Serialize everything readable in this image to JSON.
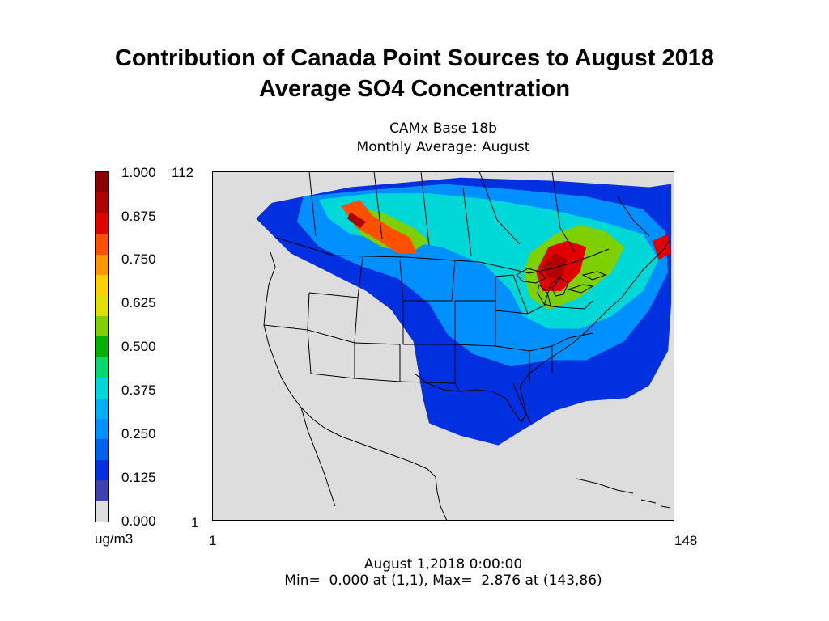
{
  "slide": {
    "title_line1": "Contribution of Canada Point Sources to August 2018",
    "title_line2": "Average SO4 Concentration"
  },
  "chart_data": {
    "type": "heatmap",
    "title_line1": "CAMx Base 18b",
    "title_line2": "Monthly Average: August",
    "colorbar": {
      "ticks": [
        "1.000",
        "0.875",
        "0.750",
        "0.625",
        "0.500",
        "0.375",
        "0.250",
        "0.125",
        "0.000"
      ],
      "unit": "ug/m3",
      "colors_top_to_bottom": [
        "#8b0000",
        "#b00000",
        "#e00000",
        "#ff5000",
        "#ff9800",
        "#ffd000",
        "#e0e000",
        "#7fd000",
        "#00b000",
        "#00d870",
        "#00d8d8",
        "#00b0f0",
        "#0090ff",
        "#0060f0",
        "#0030e0",
        "#4040b0",
        "#dddddd"
      ]
    },
    "x_axis": {
      "min_label": "1",
      "max_label": "148"
    },
    "y_axis": {
      "min_label": "1",
      "max_label": "112"
    },
    "x_range": [
      1,
      148
    ],
    "y_range": [
      1,
      112
    ],
    "field_regions": [
      {
        "level": 0.1,
        "polygon": [
          [
            20,
            102
          ],
          [
            45,
            107
          ],
          [
            80,
            110
          ],
          [
            110,
            109
          ],
          [
            140,
            107
          ],
          [
            147,
            108
          ],
          [
            147,
            70
          ],
          [
            146,
            55
          ],
          [
            140,
            44
          ],
          [
            133,
            40
          ],
          [
            120,
            39
          ],
          [
            110,
            36
          ],
          [
            100,
            30
          ],
          [
            92,
            25
          ],
          [
            80,
            28
          ],
          [
            70,
            32
          ],
          [
            68,
            40
          ],
          [
            65,
            58
          ],
          [
            58,
            68
          ],
          [
            50,
            74
          ],
          [
            38,
            80
          ],
          [
            26,
            86
          ],
          [
            15,
            97
          ]
        ]
      },
      {
        "level": 0.25,
        "polygon": [
          [
            30,
            104
          ],
          [
            50,
            106
          ],
          [
            75,
            108
          ],
          [
            100,
            106
          ],
          [
            120,
            104
          ],
          [
            138,
            100
          ],
          [
            145,
            93
          ],
          [
            146,
            80
          ],
          [
            140,
            68
          ],
          [
            132,
            58
          ],
          [
            120,
            52
          ],
          [
            108,
            52
          ],
          [
            96,
            50
          ],
          [
            84,
            54
          ],
          [
            76,
            60
          ],
          [
            70,
            70
          ],
          [
            60,
            78
          ],
          [
            48,
            82
          ],
          [
            35,
            88
          ],
          [
            28,
            96
          ]
        ]
      },
      {
        "level": 0.38,
        "polygon": [
          [
            35,
            103
          ],
          [
            52,
            105
          ],
          [
            70,
            105
          ],
          [
            90,
            103
          ],
          [
            108,
            100
          ],
          [
            125,
            96
          ],
          [
            138,
            92
          ],
          [
            143,
            84
          ],
          [
            138,
            74
          ],
          [
            128,
            66
          ],
          [
            118,
            62
          ],
          [
            108,
            62
          ],
          [
            100,
            66
          ],
          [
            96,
            74
          ],
          [
            88,
            82
          ],
          [
            74,
            88
          ],
          [
            58,
            90
          ],
          [
            45,
            92
          ],
          [
            38,
            97
          ]
        ]
      },
      {
        "level": 0.55,
        "polygon": [
          [
            44,
            101
          ],
          [
            55,
            99
          ],
          [
            65,
            94
          ],
          [
            70,
            90
          ],
          [
            64,
            86
          ],
          [
            55,
            88
          ],
          [
            48,
            92
          ]
        ]
      },
      {
        "level": 0.55,
        "polygon": [
          [
            102,
            86
          ],
          [
            110,
            92
          ],
          [
            118,
            95
          ],
          [
            126,
            93
          ],
          [
            132,
            88
          ],
          [
            128,
            80
          ],
          [
            118,
            72
          ],
          [
            108,
            68
          ],
          [
            102,
            72
          ],
          [
            100,
            80
          ]
        ]
      },
      {
        "level": 0.8,
        "polygon": [
          [
            42,
            101
          ],
          [
            48,
            103
          ],
          [
            52,
            98
          ],
          [
            58,
            94
          ],
          [
            64,
            91
          ],
          [
            66,
            86
          ],
          [
            60,
            86
          ],
          [
            54,
            90
          ],
          [
            47,
            94
          ]
        ]
      },
      {
        "level": 0.85,
        "polygon": [
          [
            104,
            80
          ],
          [
            108,
            88
          ],
          [
            114,
            90
          ],
          [
            120,
            88
          ],
          [
            118,
            80
          ],
          [
            112,
            74
          ],
          [
            106,
            74
          ]
        ]
      },
      {
        "level": 0.95,
        "polygon": [
          [
            106,
            82
          ],
          [
            110,
            86
          ],
          [
            114,
            84
          ],
          [
            112,
            78
          ],
          [
            108,
            78
          ]
        ]
      },
      {
        "level": 0.95,
        "polygon": [
          [
            45,
            99
          ],
          [
            50,
            96
          ],
          [
            48,
            94
          ],
          [
            44,
            97
          ]
        ]
      },
      {
        "level": 0.9,
        "polygon": [
          [
            141,
            90
          ],
          [
            146,
            92
          ],
          [
            147,
            86
          ],
          [
            143,
            84
          ]
        ]
      }
    ]
  }
}
